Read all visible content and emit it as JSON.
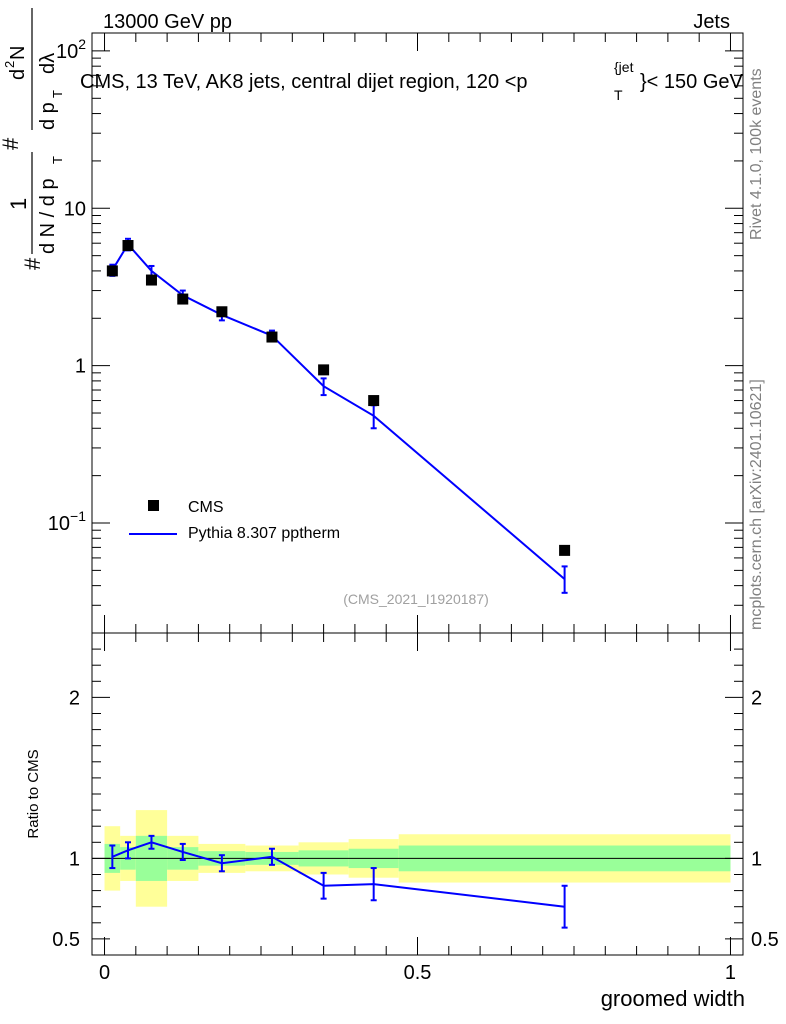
{
  "header": {
    "left": "13000 GeV pp",
    "right": "Jets"
  },
  "side_labels": {
    "rivet": "Rivet 4.1.0,  100k events",
    "mcplots": "mcplots.cern.ch [arXiv:2401.10621]"
  },
  "colors": {
    "data": "#000000",
    "mc": "#0000ff",
    "band_inner": "#99ff99",
    "band_outer": "#ffff99"
  },
  "chart_data": [
    {
      "type": "scatter",
      "title": "CMS, 13 TeV, AK8 jets, central dijet region, 120 < p_T^{jet} < 150 GeV",
      "title_parts": {
        "main": "CMS, 13 TeV, AK8 jets, central dijet region, 120 <p",
        "sup": "{jet",
        "sub": "T",
        "tail": "}< 150 GeV"
      },
      "ylabel_parts": {
        "hash1": "#",
        "num1": "1",
        "den1": "d N / d p",
        "den1_sub": "T",
        "hash2": "#",
        "num2": "d",
        "num2_sup": "2",
        "num2_tail": "N",
        "den2": "d p",
        "den2_sub": "T",
        "den2_tail": "dλ"
      },
      "xlabel": "groomed width",
      "yscale": "log",
      "xlim": [
        -0.02,
        1.02
      ],
      "ylim": [
        0.02,
        130
      ],
      "yticks": [
        {
          "value": 100,
          "label": "10",
          "sup": "2"
        },
        {
          "value": 10,
          "label": "10",
          "sup": ""
        },
        {
          "value": 1,
          "label": "1",
          "sup": ""
        },
        {
          "value": 0.1,
          "label": "10",
          "sup": "−1"
        }
      ],
      "watermark": "(CMS_2021_I1920187)",
      "legend": {
        "position": "lower-left",
        "entries": [
          "CMS",
          "Pythia 8.307 pptherm"
        ]
      },
      "series": [
        {
          "name": "CMS",
          "style": "markers",
          "x": [
            0.0125,
            0.0375,
            0.075,
            0.125,
            0.1875,
            0.2675,
            0.35,
            0.43,
            0.735
          ],
          "y": [
            4.0,
            5.8,
            3.5,
            2.65,
            2.2,
            1.52,
            0.94,
            0.6,
            0.067
          ]
        },
        {
          "name": "Pythia 8.307 pptherm",
          "style": "line",
          "x": [
            0.0125,
            0.0375,
            0.075,
            0.125,
            0.1875,
            0.2675,
            0.35,
            0.43,
            0.735
          ],
          "y": [
            4.05,
            5.9,
            4.0,
            2.8,
            2.1,
            1.55,
            0.74,
            0.48,
            0.044
          ],
          "yerr_low": [
            0.33,
            0.5,
            0.3,
            0.2,
            0.16,
            0.12,
            0.09,
            0.08,
            0.008
          ],
          "yerr_high": [
            0.33,
            0.5,
            0.3,
            0.2,
            0.16,
            0.12,
            0.09,
            0.08,
            0.009
          ]
        }
      ]
    },
    {
      "type": "line",
      "title": "",
      "ylabel": "Ratio to CMS",
      "xlabel": "groomed width",
      "xlim": [
        -0.02,
        1.02
      ],
      "ylim": [
        0.4,
        2.4
      ],
      "yticks": [
        {
          "value": 2,
          "label": "2"
        },
        {
          "value": 1,
          "label": "1"
        },
        {
          "value": 0.5,
          "label": "0.5"
        }
      ],
      "xticks": [
        {
          "value": 0,
          "label": "0"
        },
        {
          "value": 0.5,
          "label": "0.5"
        },
        {
          "value": 1,
          "label": "1"
        }
      ],
      "reference_line": 1,
      "bands": [
        {
          "x0": 0.0,
          "x1": 0.025,
          "inner": [
            0.91,
            1.09
          ],
          "outer": [
            0.8,
            1.2
          ]
        },
        {
          "x0": 0.025,
          "x1": 0.05,
          "inner": [
            0.93,
            1.07
          ],
          "outer": [
            0.86,
            1.14
          ]
        },
        {
          "x0": 0.05,
          "x1": 0.1,
          "inner": [
            0.86,
            1.14
          ],
          "outer": [
            0.7,
            1.3
          ]
        },
        {
          "x0": 0.1,
          "x1": 0.15,
          "inner": [
            0.93,
            1.07
          ],
          "outer": [
            0.86,
            1.14
          ]
        },
        {
          "x0": 0.15,
          "x1": 0.225,
          "inner": [
            0.955,
            1.045
          ],
          "outer": [
            0.91,
            1.09
          ]
        },
        {
          "x0": 0.225,
          "x1": 0.31,
          "inner": [
            0.96,
            1.04
          ],
          "outer": [
            0.92,
            1.08
          ]
        },
        {
          "x0": 0.31,
          "x1": 0.39,
          "inner": [
            0.95,
            1.05
          ],
          "outer": [
            0.9,
            1.1
          ]
        },
        {
          "x0": 0.39,
          "x1": 0.47,
          "inner": [
            0.94,
            1.06
          ],
          "outer": [
            0.88,
            1.12
          ]
        },
        {
          "x0": 0.47,
          "x1": 1.0,
          "inner": [
            0.92,
            1.08
          ],
          "outer": [
            0.85,
            1.15
          ]
        }
      ],
      "series": [
        {
          "name": "Pythia 8.307 pptherm / CMS",
          "x": [
            0.0125,
            0.0375,
            0.075,
            0.125,
            0.1875,
            0.2675,
            0.35,
            0.43,
            0.735
          ],
          "y": [
            1.01,
            1.05,
            1.1,
            1.04,
            0.97,
            1.01,
            0.83,
            0.84,
            0.7
          ],
          "yerr": [
            0.07,
            0.05,
            0.04,
            0.05,
            0.05,
            0.05,
            0.08,
            0.1,
            0.13
          ]
        }
      ]
    }
  ]
}
